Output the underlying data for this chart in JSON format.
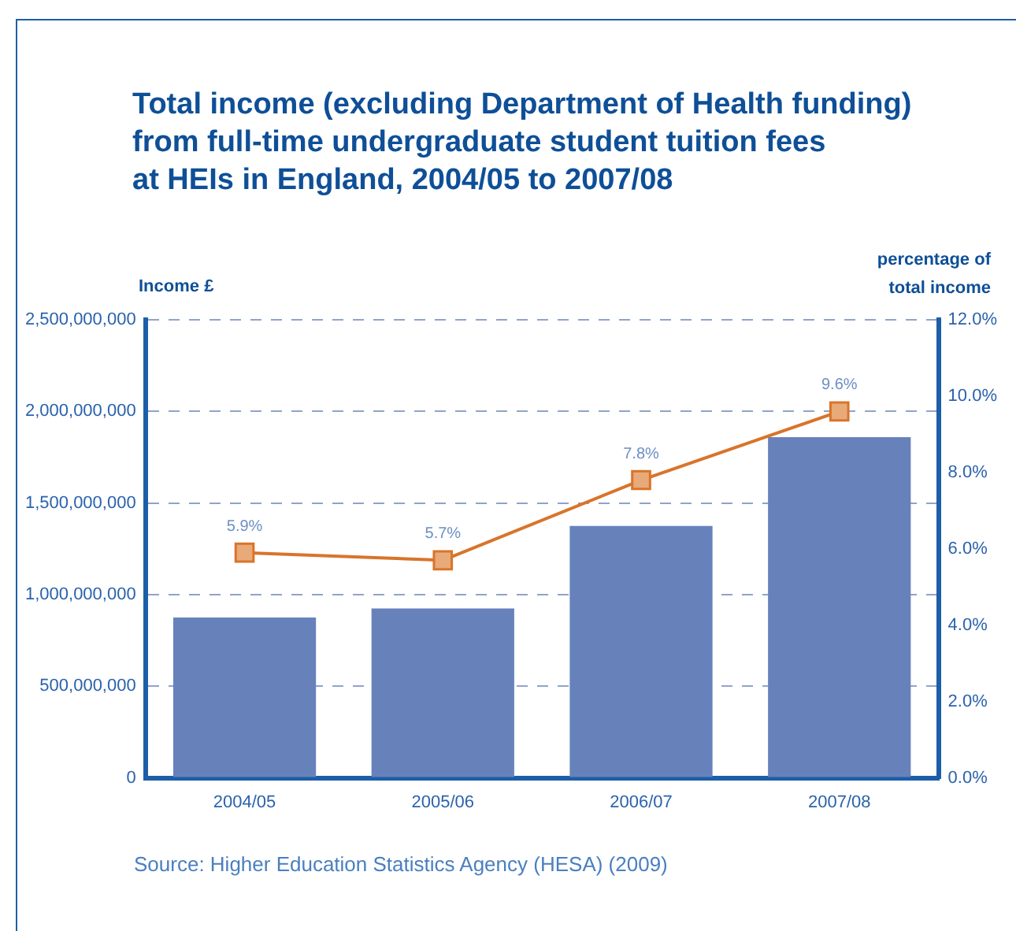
{
  "chart_data": {
    "type": "bar",
    "title": "Total income (excluding Department of Health funding)\nfrom full-time undergraduate student tuition fees\nat HEIs in England, 2004/05 to 2007/08",
    "ylabel": "Income £",
    "y2label": "percentage of\ntotal income",
    "annotations": [
      "Source: Higher Education Statistics Agency (HESA) (2009)"
    ],
    "categories": [
      "2004/05",
      "2005/06",
      "2006/07",
      "2007/08"
    ],
    "series": [
      {
        "color": "#6782bb",
        "values": [
          875000000,
          925000000,
          1375000000,
          1860000000
        ]
      },
      {
        "type": "line",
        "axis": "y2",
        "color": "#d9742a",
        "values": [
          5.9,
          5.7,
          7.8,
          9.6
        ],
        "value_labels": [
          "5.9%",
          "5.7%",
          "7.8%",
          "9.6%"
        ]
      }
    ],
    "ylim": [
      0,
      2500000000
    ],
    "yticks": [
      {
        "value": 0,
        "label": "0"
      },
      {
        "value": 500000000,
        "label": "500,000,000"
      },
      {
        "value": 1000000000,
        "label": "1,000,000,000"
      },
      {
        "value": 1500000000,
        "label": "1,500,000,000"
      },
      {
        "value": 2000000000,
        "label": "2,000,000,000"
      },
      {
        "value": 2500000000,
        "label": "2,500,000,000"
      }
    ],
    "y2lim": [
      0,
      12
    ],
    "y2ticks": [
      {
        "value": 0,
        "label": "0.0%"
      },
      {
        "value": 2,
        "label": "2.0%"
      },
      {
        "value": 4,
        "label": "4.0%"
      },
      {
        "value": 6,
        "label": "6.0%"
      },
      {
        "value": 8,
        "label": "8.0%"
      },
      {
        "value": 10,
        "label": "10.0%"
      },
      {
        "value": 12,
        "label": "12.0%"
      }
    ],
    "grid": "y",
    "legend": false,
    "marker": "square"
  }
}
